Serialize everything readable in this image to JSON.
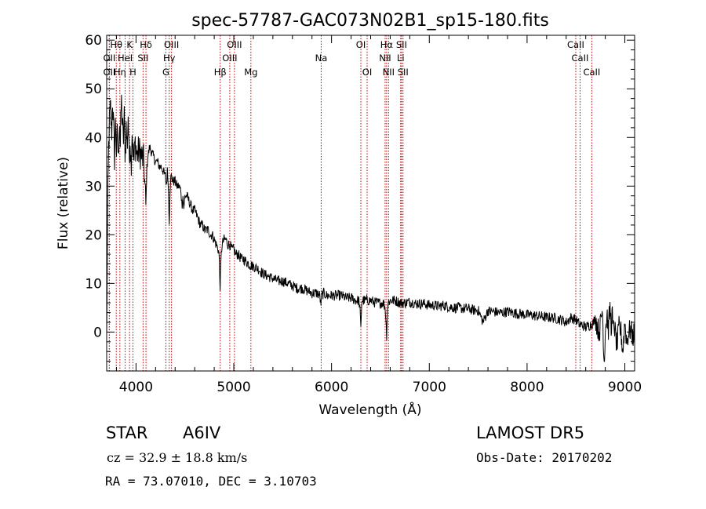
{
  "chart_data": {
    "type": "line",
    "title": "spec-57787-GAC073N02B1_sp15-180.fits",
    "xlabel": "Wavelength (Å)",
    "ylabel": "Flux (relative)",
    "xlim": [
      3700,
      9100
    ],
    "ylim": [
      -8,
      61
    ],
    "xticks": [
      4000,
      5000,
      6000,
      7000,
      8000,
      9000
    ],
    "yticks": [
      0,
      10,
      20,
      30,
      40,
      50,
      60
    ],
    "grid": false,
    "legend": "none",
    "line_color": "#000000",
    "marker_color": "#c00000",
    "spectral_lines": [
      {
        "label": "OII",
        "wavelength": 3727,
        "row": 2
      },
      {
        "label": "OII",
        "wavelength": 3727,
        "row": 3
      },
      {
        "label": "Hθ",
        "wavelength": 3798,
        "row": 1
      },
      {
        "label": "Hη",
        "wavelength": 3835,
        "row": 3
      },
      {
        "label": "HeI",
        "wavelength": 3889,
        "row": 2
      },
      {
        "label": "K",
        "wavelength": 3934,
        "row": 1
      },
      {
        "label": "H",
        "wavelength": 3968,
        "row": 3
      },
      {
        "label": "SII",
        "wavelength": 4072,
        "row": 2
      },
      {
        "label": "Hδ",
        "wavelength": 4102,
        "row": 1
      },
      {
        "label": "G",
        "wavelength": 4305,
        "row": 3
      },
      {
        "label": "Hγ",
        "wavelength": 4340,
        "row": 2
      },
      {
        "label": "OIII",
        "wavelength": 4363,
        "row": 1
      },
      {
        "label": "Hβ",
        "wavelength": 4861,
        "row": 3
      },
      {
        "label": "OIII",
        "wavelength": 4959,
        "row": 2
      },
      {
        "label": "OIII",
        "wavelength": 5007,
        "row": 1
      },
      {
        "label": "Mg",
        "wavelength": 5175,
        "row": 3
      },
      {
        "label": "Na",
        "wavelength": 5894,
        "row": 2
      },
      {
        "label": "OI",
        "wavelength": 6300,
        "row": 1
      },
      {
        "label": "OI",
        "wavelength": 6364,
        "row": 3
      },
      {
        "label": "NII",
        "wavelength": 6548,
        "row": 2
      },
      {
        "label": "Hα",
        "wavelength": 6563,
        "row": 1
      },
      {
        "label": "NII",
        "wavelength": 6583,
        "row": 3
      },
      {
        "label": "Li",
        "wavelength": 6707,
        "row": 2
      },
      {
        "label": "SII",
        "wavelength": 6716,
        "row": 1
      },
      {
        "label": "SII",
        "wavelength": 6731,
        "row": 3
      },
      {
        "label": "CaII",
        "wavelength": 8498,
        "row": 1
      },
      {
        "label": "CaII",
        "wavelength": 8542,
        "row": 2
      },
      {
        "label": "CaII",
        "wavelength": 8662,
        "row": 3
      }
    ],
    "spectrum": {
      "x": [
        3700,
        3710,
        3720,
        3730,
        3740,
        3750,
        3760,
        3770,
        3780,
        3790,
        3800,
        3810,
        3820,
        3830,
        3840,
        3850,
        3860,
        3870,
        3880,
        3890,
        3900,
        3910,
        3920,
        3930,
        3940,
        3950,
        3960,
        3970,
        3980,
        3990,
        4000,
        4010,
        4020,
        4040,
        4060,
        4080,
        4090,
        4100,
        4105,
        4110,
        4120,
        4140,
        4160,
        4180,
        4200,
        4220,
        4240,
        4260,
        4280,
        4300,
        4310,
        4320,
        4330,
        4335,
        4340,
        4345,
        4350,
        4360,
        4380,
        4400,
        4420,
        4440,
        4460,
        4470,
        4480,
        4490,
        4500,
        4520,
        4540,
        4560,
        4580,
        4600,
        4620,
        4640,
        4660,
        4680,
        4700,
        4720,
        4740,
        4760,
        4780,
        4800,
        4820,
        4840,
        4850,
        4855,
        4861,
        4866,
        4872,
        4880,
        4900,
        4920,
        4940,
        4960,
        4980,
        5000,
        5020,
        5040,
        5060,
        5080,
        5100,
        5150,
        5200,
        5250,
        5300,
        5350,
        5400,
        5450,
        5500,
        5550,
        5600,
        5650,
        5700,
        5750,
        5800,
        5850,
        5880,
        5890,
        5900,
        5920,
        5950,
        6000,
        6050,
        6100,
        6150,
        6200,
        6250,
        6280,
        6290,
        6300,
        6305,
        6310,
        6330,
        6360,
        6400,
        6450,
        6500,
        6530,
        6550,
        6560,
        6563,
        6566,
        6570,
        6580,
        6600,
        6620,
        6650,
        6700,
        6750,
        6800,
        6850,
        6870,
        6880,
        6900,
        6950,
        7000,
        7050,
        7100,
        7150,
        7200,
        7250,
        7300,
        7350,
        7400,
        7450,
        7500,
        7550,
        7590,
        7600,
        7610,
        7650,
        7700,
        7750,
        7800,
        7850,
        7900,
        7950,
        8000,
        8050,
        8100,
        8150,
        8200,
        8250,
        8300,
        8350,
        8400,
        8450,
        8500,
        8520,
        8540,
        8560,
        8600,
        8650,
        8680,
        8700,
        8720,
        8740,
        8760,
        8770,
        8780,
        8790,
        8800,
        8810,
        8820,
        8830,
        8840,
        8850,
        8860,
        8870,
        8880,
        8890,
        8900,
        8920,
        8940,
        8960,
        8980,
        9000,
        9020,
        9040,
        9060,
        9080,
        9100
      ],
      "y": [
        -2,
        25,
        38,
        44,
        46,
        40,
        48,
        42,
        36,
        44,
        37,
        41,
        35,
        45,
        38,
        48,
        43,
        39,
        44,
        36,
        42,
        38,
        45,
        35,
        40,
        34,
        42,
        37,
        35,
        39,
        38,
        36,
        37,
        37,
        36,
        35,
        30,
        26,
        29,
        33,
        36,
        38,
        37,
        36,
        35,
        35,
        34,
        34,
        33,
        32,
        30,
        33,
        31,
        25,
        23,
        27,
        31,
        32,
        31,
        31,
        30,
        30,
        29,
        26,
        28,
        25,
        28,
        28,
        27,
        26,
        25,
        25,
        24,
        23,
        22,
        22,
        21,
        21,
        21,
        20,
        20,
        19,
        18,
        17,
        16,
        12,
        9,
        13,
        16,
        18,
        19,
        19,
        18,
        18,
        17,
        17,
        16,
        16,
        15.5,
        15,
        15,
        14,
        13.5,
        13,
        12,
        11.5,
        11,
        10.5,
        10.5,
        10,
        9.5,
        9,
        9,
        8.5,
        8,
        8,
        7.5,
        5.5,
        7.5,
        8,
        7.5,
        7.5,
        7.5,
        7.5,
        7,
        7,
        6.5,
        6.5,
        5,
        0.5,
        4,
        6.5,
        6.5,
        6.5,
        6.5,
        6,
        6,
        6,
        5,
        1,
        -1.5,
        1,
        4.5,
        6,
        6.5,
        6.5,
        6.5,
        6,
        6,
        6.2,
        6,
        5.5,
        6,
        5.8,
        5.8,
        5.5,
        5.5,
        5.3,
        5.5,
        5.2,
        5,
        5,
        4.8,
        4.8,
        4.5,
        4.5,
        2,
        4,
        4.5,
        4.3,
        4.2,
        4,
        4,
        4.2,
        4,
        3.8,
        3.7,
        3.5,
        3.5,
        3.3,
        3.2,
        3,
        3,
        2.8,
        2.5,
        2,
        3,
        2.5,
        2,
        1.5,
        1.5,
        1,
        1.5,
        2,
        3,
        1,
        0,
        3,
        5,
        -1,
        -7,
        1,
        2,
        4,
        0,
        3,
        5,
        1,
        4,
        0,
        2,
        0,
        -3,
        1,
        0,
        -4,
        2,
        -2,
        0,
        0.5,
        -1,
        0
      ],
      "noise": 1.1
    }
  },
  "info": {
    "object_class": "STAR",
    "subclass": "A6IV",
    "survey": "LAMOST DR5",
    "redshift": "cz = 32.9 ± 18.8 km/s",
    "obs_date": "Obs-Date: 20170202",
    "coords": "RA =  73.07010, DEC =   3.10703"
  }
}
